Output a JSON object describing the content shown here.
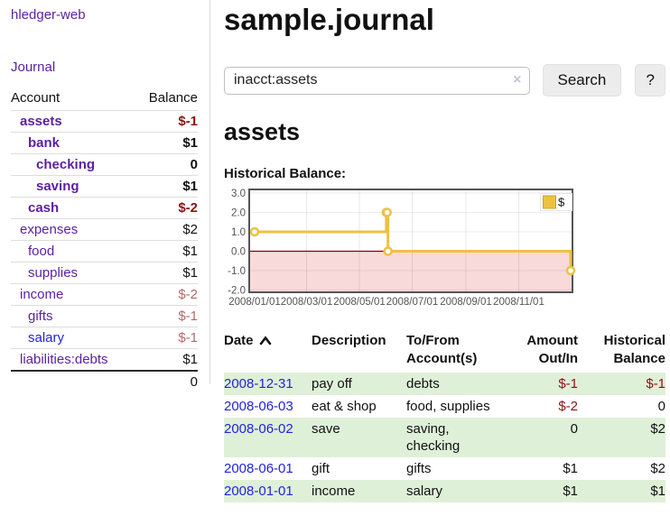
{
  "sidebar": {
    "brand": "hledger-web",
    "journal_label": "Journal",
    "accounts_header": {
      "account": "Account",
      "balance": "Balance"
    },
    "accounts": [
      {
        "name": "assets",
        "depth": 0,
        "bold": true,
        "balance": "$-1",
        "balance_class": "neg-strong"
      },
      {
        "name": "bank",
        "depth": 1,
        "bold": true,
        "balance": "$1",
        "balance_class": "pos"
      },
      {
        "name": "checking",
        "depth": 2,
        "bold": true,
        "balance": "0",
        "balance_class": "pos"
      },
      {
        "name": "saving",
        "depth": 2,
        "bold": true,
        "balance": "$1",
        "balance_class": "pos"
      },
      {
        "name": "cash",
        "depth": 1,
        "bold": true,
        "balance": "$-2",
        "balance_class": "neg-strong"
      },
      {
        "name": "expenses",
        "depth": 0,
        "bold": false,
        "balance": "$2",
        "balance_class": "pos"
      },
      {
        "name": "food",
        "depth": 1,
        "bold": false,
        "balance": "$1",
        "balance_class": "pos"
      },
      {
        "name": "supplies",
        "depth": 1,
        "bold": false,
        "balance": "$1",
        "balance_class": "pos"
      },
      {
        "name": "income",
        "depth": 0,
        "bold": false,
        "balance": "$-2",
        "balance_class": "neg-muted"
      },
      {
        "name": "gifts",
        "depth": 1,
        "bold": false,
        "balance": "$-1",
        "balance_class": "neg-muted"
      },
      {
        "name": "salary",
        "depth": 1,
        "bold": false,
        "balance": "$-1",
        "balance_class": "neg-muted",
        "link_color": "blue"
      },
      {
        "name": "liabilities:debts",
        "depth": 0,
        "bold": false,
        "balance": "$1",
        "balance_class": "pos"
      }
    ],
    "total": "0"
  },
  "main": {
    "title": "sample.journal",
    "search": {
      "value": "inacct:assets",
      "clear_icon": "×",
      "button_label": "Search",
      "help_label": "?"
    },
    "account_heading": "assets",
    "chart_label": "Historical Balance:"
  },
  "chart_data": {
    "type": "line",
    "step": true,
    "title": "Historical Balance",
    "legend": {
      "label": "$",
      "position": "top-right"
    },
    "series": [
      {
        "name": "$",
        "color": "#edc240",
        "points": [
          [
            "2008/01/01",
            1
          ],
          [
            "2008/06/01",
            2
          ],
          [
            "2008/06/02",
            2
          ],
          [
            "2008/06/03",
            0
          ],
          [
            "2008/12/31",
            -1
          ]
        ]
      }
    ],
    "x_ticks": [
      "2008/01/01",
      "2008/03/01",
      "2008/05/01",
      "2008/07/01",
      "2008/09/01",
      "2008/11/01"
    ],
    "y_ticks": [
      3.0,
      2.0,
      1.0,
      0.0,
      -1.0,
      -2.0
    ],
    "x_range": [
      "2008/01/01",
      "2008/12/31"
    ],
    "ylim": [
      -2.3,
      3.2
    ],
    "grid": true,
    "zero_line_color": "#8b0000",
    "negative_region_fill": "#f9dada",
    "border_color": "#545454",
    "tick_label_color": "#545454"
  },
  "register": {
    "headers": [
      {
        "line1": "Date",
        "sort_icon": "chevron-up-icon",
        "align": "left"
      },
      {
        "line1": "Description",
        "align": "left"
      },
      {
        "line1": "To/From",
        "line2": "Account(s)",
        "align": "left"
      },
      {
        "line1": "Amount",
        "line2": "Out/In",
        "align": "right"
      },
      {
        "line1": "Historical",
        "line2": "Balance",
        "align": "right"
      }
    ],
    "rows": [
      {
        "date": "2008-12-31",
        "description": "pay off",
        "tofrom": "debts",
        "amount": "$-1",
        "amount_class": "neg",
        "balance": "$-1",
        "balance_class": "neg"
      },
      {
        "date": "2008-06-03",
        "description": "eat & shop",
        "tofrom": "food, supplies",
        "amount": "$-2",
        "amount_class": "neg",
        "balance": "0",
        "balance_class": ""
      },
      {
        "date": "2008-06-02",
        "description": "save",
        "tofrom": "saving, checking",
        "amount": "0",
        "amount_class": "",
        "balance": "$2",
        "balance_class": ""
      },
      {
        "date": "2008-06-01",
        "description": "gift",
        "tofrom": "gifts",
        "amount": "$1",
        "amount_class": "",
        "balance": "$2",
        "balance_class": ""
      },
      {
        "date": "2008-01-01",
        "description": "income",
        "tofrom": "salary",
        "amount": "$1",
        "amount_class": "",
        "balance": "$1",
        "balance_class": ""
      }
    ]
  },
  "colors": {
    "link_purple": "#5b1fa2",
    "link_blue": "#2323dd",
    "negative_strong": "#8b1313",
    "negative_muted": "#b5696b",
    "row_stripe_green": "#dff0d8",
    "chart_line": "#edc240"
  }
}
